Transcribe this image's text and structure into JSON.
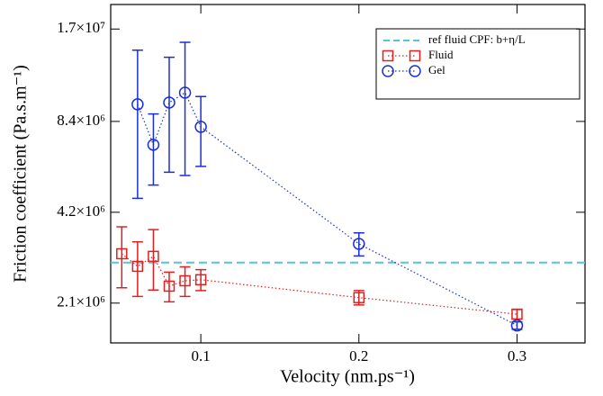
{
  "chart_data": {
    "type": "scatter",
    "x_label": "Velocity (nm.ps⁻¹)",
    "y_label": "Friction coefficient (Pa.s.m⁻¹)",
    "xlim": [
      0.043,
      0.343
    ],
    "xticks": [
      0.1,
      0.2,
      0.3
    ],
    "ylim": [
      1550000,
      20500000
    ],
    "log_y": true,
    "yticks": [
      {
        "value": 2100000,
        "label": "2.1×10⁶"
      },
      {
        "value": 4200000,
        "label": "4.2×10⁶"
      },
      {
        "value": 8400000,
        "label": "8.4×10⁶"
      },
      {
        "value": 17000000,
        "label": "1.7×10⁷"
      }
    ],
    "legend_position": "upper right",
    "reference": {
      "name": "ref fluid CPF: b+η/L",
      "value": 2860000,
      "color": "#4cc8d8"
    },
    "series": [
      {
        "name": "Fluid",
        "color": "#e02020",
        "marker": "square",
        "x": [
          0.05,
          0.06,
          0.07,
          0.08,
          0.09,
          0.1,
          0.2,
          0.3
        ],
        "values": [
          3060000,
          2780000,
          3000000,
          2390000,
          2490000,
          2510000,
          2190000,
          1930000
        ],
        "errors": [
          700000,
          570000,
          680000,
          270000,
          280000,
          200000,
          120000,
          70000
        ]
      },
      {
        "name": "Gel",
        "color": "#1a2fd8",
        "marker": "circle",
        "x": [
          0.06,
          0.07,
          0.08,
          0.09,
          0.1,
          0.2,
          0.3
        ],
        "values": [
          9570000,
          7030000,
          9700000,
          10460000,
          8060000,
          3300000,
          1770000
        ],
        "errors": [
          4900000,
          1860000,
          4000000,
          4900000,
          2100000,
          290000,
          50000
        ]
      }
    ]
  }
}
